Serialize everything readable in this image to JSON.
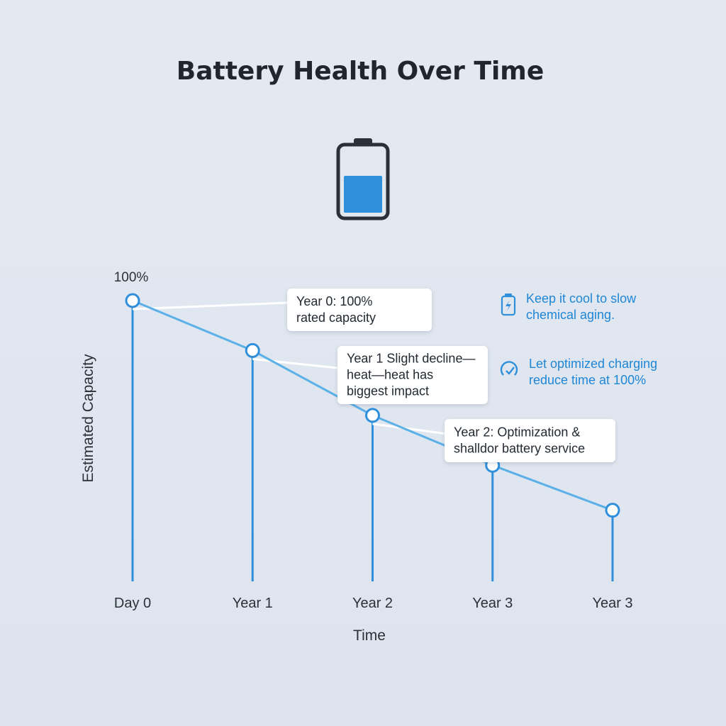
{
  "title": "Battery Health Over Time",
  "icon": "battery-icon",
  "accent_color": "#2f8fdb",
  "chart_data": {
    "type": "line",
    "title": "Battery Health Over Time",
    "xlabel": "Time",
    "ylabel": "Estimated Capacity",
    "categories": [
      "Day 0",
      "Year 1",
      "Year 2",
      "Year 3",
      "Year 3"
    ],
    "series": [
      {
        "values": [
          100,
          90,
          77,
          67,
          58
        ]
      }
    ],
    "ylim": [
      50,
      100
    ],
    "peak_label": "100%",
    "grid": false,
    "annotations": [
      {
        "point": 0,
        "lines": [
          "Year 0: 100%",
          "rated capacity"
        ]
      },
      {
        "point": 1,
        "lines": [
          "Year 1 Slight decline—",
          "heat—heat has",
          "biggest impact"
        ]
      },
      {
        "point": 2,
        "lines": [
          "Year 2: Optimization &",
          "shalldor battery service"
        ]
      }
    ],
    "tips": [
      {
        "icon": "battery-bolt-icon",
        "lines": [
          "Keep it cool to slow",
          "chemical aging."
        ]
      },
      {
        "icon": "gauge-check-icon",
        "lines": [
          "Let optimized charging",
          "reduce time at 100%"
        ]
      }
    ]
  }
}
